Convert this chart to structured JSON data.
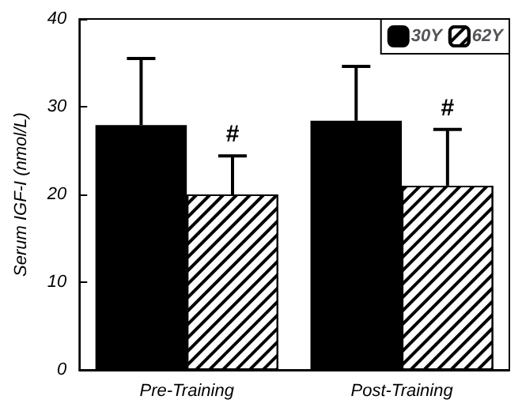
{
  "chart_data": {
    "type": "bar",
    "ylabel": "Serum IGF-I (nmol/L)",
    "categories": [
      "Pre-Training",
      "Post-Training"
    ],
    "series": [
      {
        "name": "30Y",
        "color": "#000000",
        "values": [
          27.9,
          28.4
        ],
        "errors": [
          [
            27.9,
            35.5
          ],
          [
            28.4,
            34.6
          ]
        ]
      },
      {
        "name": "62Y",
        "color": "#ffffff",
        "values": [
          20.0,
          21.0
        ],
        "errors": [
          [
            20.0,
            24.4
          ],
          [
            21.0,
            27.4
          ]
        ]
      }
    ],
    "annotations": [
      {
        "text": "#",
        "x": "Pre-Training",
        "y": 25.5
      },
      {
        "text": "#",
        "x": "Post-Training",
        "y": 28.5
      }
    ],
    "ylim": [
      0,
      40
    ],
    "yticks": [
      0,
      10,
      20,
      30,
      40
    ],
    "grid": false,
    "legend": "top right"
  }
}
